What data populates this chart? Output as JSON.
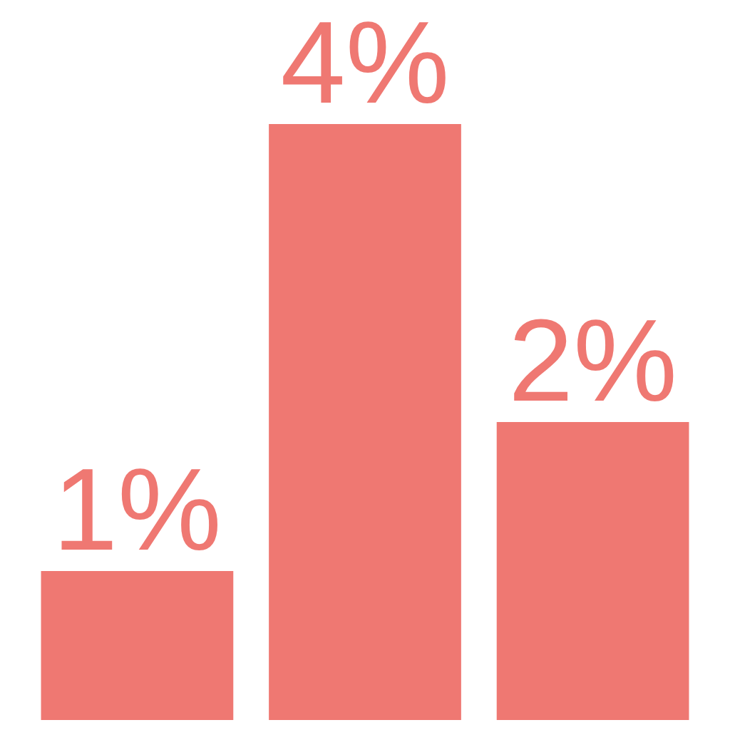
{
  "chart_data": {
    "type": "bar",
    "categories": [
      null,
      null,
      null
    ],
    "values": [
      1,
      4,
      2
    ],
    "value_labels": [
      "1%",
      "4%",
      "2%"
    ],
    "tick_labels": false,
    "color": "#ef7872"
  }
}
